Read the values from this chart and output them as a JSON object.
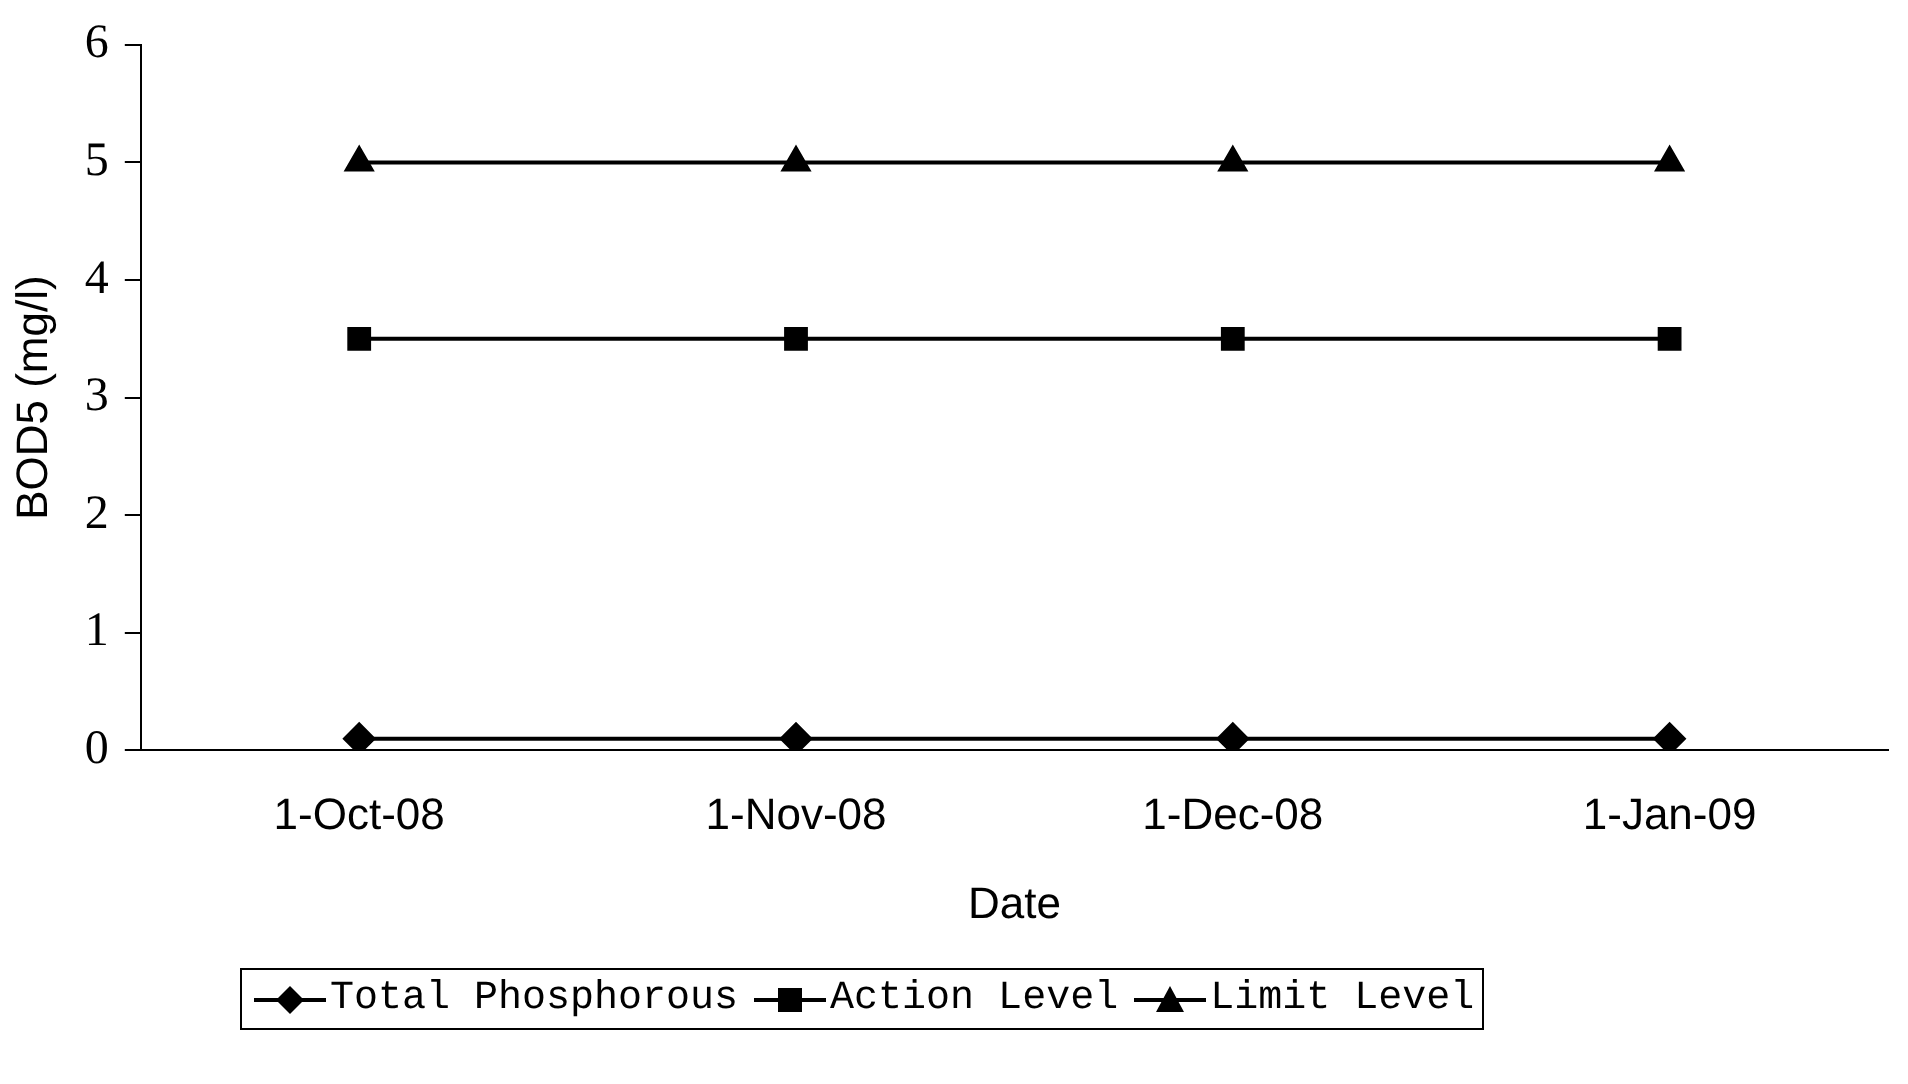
{
  "chart_data": {
    "type": "line",
    "xlabel": "Date",
    "ylabel": "BOD5 (mg/l)",
    "categories": [
      "1-Oct-08",
      "1-Nov-08",
      "1-Dec-08",
      "1-Jan-09"
    ],
    "series": [
      {
        "name": "Total Phosphorous",
        "color": "#000000",
        "marker": "diamond",
        "values": [
          0.1,
          0.1,
          0.1,
          0.1
        ]
      },
      {
        "name": "Action Level",
        "color": "#000000",
        "marker": "square",
        "values": [
          3.5,
          3.5,
          3.5,
          3.5
        ]
      },
      {
        "name": "Limit Level",
        "color": "#000000",
        "marker": "triangle",
        "values": [
          5,
          5,
          5,
          5
        ]
      }
    ],
    "ylim": [
      0,
      6
    ],
    "yticks": [
      0,
      1,
      2,
      3,
      4,
      5,
      6
    ],
    "grid": false,
    "legend": "bottom",
    "line_style": "solid"
  }
}
